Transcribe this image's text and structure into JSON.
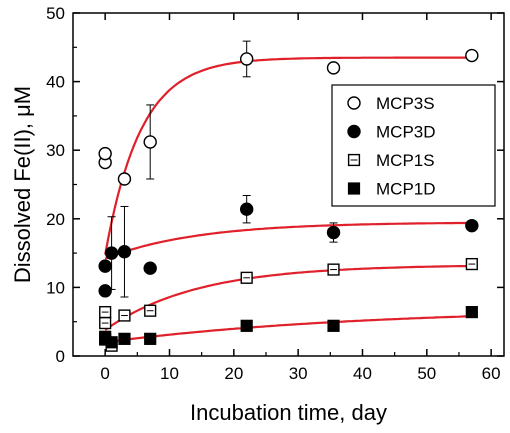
{
  "chart_data": {
    "type": "scatter",
    "xlabel": "Incubation time, day",
    "ylabel": "Dissolved Fe(II), μM",
    "xlim": [
      -5,
      62
    ],
    "ylim": [
      0,
      50
    ],
    "xticks": [
      0,
      10,
      20,
      30,
      40,
      50,
      60
    ],
    "yticks": [
      0,
      10,
      20,
      30,
      40,
      50
    ],
    "grid": false,
    "legend_position": "right",
    "fit_color": "#e0202a",
    "series": [
      {
        "name": "MCP3S",
        "marker": "circle-open",
        "points": [
          {
            "x": 0,
            "y": 28.2
          },
          {
            "x": 0,
            "y": 29.5,
            "err": 0.6
          },
          {
            "x": 3,
            "y": 25.8
          },
          {
            "x": 7,
            "y": 31.2,
            "err": 5.4
          },
          {
            "x": 22,
            "y": 43.3,
            "err": 2.6
          },
          {
            "x": 35.5,
            "y": 42.0
          },
          {
            "x": 57,
            "y": 43.8
          }
        ],
        "fit": {
          "a": 43.5,
          "x0": 0,
          "y0": 14.8,
          "k": 0.18
        }
      },
      {
        "name": "MCP3D",
        "marker": "circle-filled",
        "points": [
          {
            "x": 0,
            "y": 9.5
          },
          {
            "x": 0,
            "y": 13.1
          },
          {
            "x": 1,
            "y": 15.0,
            "err": 5.3
          },
          {
            "x": 3,
            "y": 15.2,
            "err": 6.6
          },
          {
            "x": 7,
            "y": 12.8
          },
          {
            "x": 22,
            "y": 21.4,
            "err": 2.0
          },
          {
            "x": 35.5,
            "y": 18.0,
            "err": 1.4
          },
          {
            "x": 57,
            "y": 19.0
          }
        ],
        "fit": {
          "a": 19.5,
          "x0": 0,
          "y0": 14.2,
          "k": 0.07
        }
      },
      {
        "name": "MCP1S",
        "marker": "square-open",
        "points": [
          {
            "x": 0,
            "y": 6.4
          },
          {
            "x": 0,
            "y": 4.8
          },
          {
            "x": 1,
            "y": 1.5
          },
          {
            "x": 3,
            "y": 5.9
          },
          {
            "x": 7,
            "y": 6.6
          },
          {
            "x": 22,
            "y": 11.4
          },
          {
            "x": 35.5,
            "y": 12.6
          },
          {
            "x": 57,
            "y": 13.4
          }
        ],
        "fit": {
          "a": 13.3,
          "x0": 0,
          "y0": 3.8,
          "k": 0.07
        }
      },
      {
        "name": "MCP1D",
        "marker": "square-filled",
        "points": [
          {
            "x": 0,
            "y": 2.8
          },
          {
            "x": 0,
            "y": 2.4
          },
          {
            "x": 1,
            "y": 2.0
          },
          {
            "x": 3,
            "y": 2.5
          },
          {
            "x": 7,
            "y": 2.5
          },
          {
            "x": 22,
            "y": 4.4
          },
          {
            "x": 35.5,
            "y": 4.4
          },
          {
            "x": 57,
            "y": 6.4
          }
        ],
        "fit": {
          "a": 7.0,
          "x0": 0,
          "y0": 2.0,
          "k": 0.025
        }
      }
    ]
  }
}
